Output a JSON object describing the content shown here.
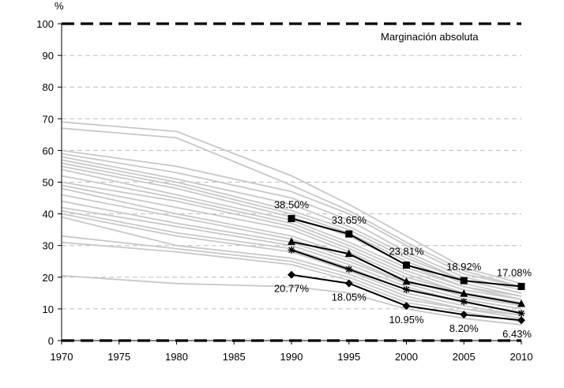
{
  "chart_data": {
    "type": "line",
    "title": "",
    "ylabel": "%",
    "xlabel": "",
    "ylim": [
      0,
      100
    ],
    "xlim": [
      1970,
      2010
    ],
    "x_ticks": [
      1970,
      1975,
      1980,
      1985,
      1990,
      1995,
      2000,
      2005,
      2010
    ],
    "y_ticks": [
      0,
      10,
      20,
      30,
      40,
      50,
      60,
      70,
      80,
      90,
      100
    ],
    "grid": "horizontal dashed",
    "annotation": "Marginación absoluta",
    "reference_lines": [
      0,
      100
    ],
    "background_series": [
      {
        "x": [
          1970,
          1980,
          1990,
          1995,
          2000,
          2005,
          2010
        ],
        "values": [
          69,
          66,
          52,
          43,
          33,
          23,
          18
        ]
      },
      {
        "x": [
          1970,
          1980,
          1990,
          1995,
          2000,
          2005,
          2010
        ],
        "values": [
          67,
          64,
          49,
          41,
          31,
          22,
          17
        ]
      },
      {
        "x": [
          1970,
          1980,
          1990,
          1995,
          2000,
          2005,
          2010
        ],
        "values": [
          60,
          55,
          47,
          40,
          30,
          21,
          17
        ]
      },
      {
        "x": [
          1970,
          1980,
          1990,
          1995,
          2000,
          2005,
          2010
        ],
        "values": [
          59,
          53,
          45,
          38,
          28,
          20,
          16
        ]
      },
      {
        "x": [
          1970,
          1980,
          1990,
          1995,
          2000,
          2005,
          2010
        ],
        "values": [
          58,
          51,
          43,
          36,
          27,
          19,
          15
        ]
      },
      {
        "x": [
          1970,
          1980,
          1990,
          1995,
          2000,
          2005,
          2010
        ],
        "values": [
          57,
          50,
          41,
          35,
          26,
          19,
          15
        ]
      },
      {
        "x": [
          1970,
          1980,
          1990,
          1995,
          2000,
          2005,
          2010
        ],
        "values": [
          56,
          49,
          40,
          34,
          25,
          18,
          14
        ]
      },
      {
        "x": [
          1970,
          1980,
          1990,
          1995,
          2000,
          2005,
          2010
        ],
        "values": [
          55,
          48,
          39,
          33,
          24,
          17,
          14
        ]
      },
      {
        "x": [
          1970,
          1980,
          1990,
          1995,
          2000,
          2005,
          2010
        ],
        "values": [
          54,
          46,
          38,
          31,
          23,
          17,
          13
        ]
      },
      {
        "x": [
          1970,
          1980,
          1990,
          1995,
          2000,
          2005,
          2010
        ],
        "values": [
          52,
          45,
          37,
          30,
          22,
          16,
          13
        ]
      },
      {
        "x": [
          1970,
          1980,
          1990,
          1995,
          2000,
          2005,
          2010
        ],
        "values": [
          50,
          44,
          36,
          29,
          21,
          15,
          12
        ]
      },
      {
        "x": [
          1970,
          1980,
          1990,
          1995,
          2000,
          2005,
          2010
        ],
        "values": [
          49,
          42,
          35,
          28,
          20,
          15,
          12
        ]
      },
      {
        "x": [
          1970,
          1980,
          1990,
          1995,
          2000,
          2005,
          2010
        ],
        "values": [
          48,
          40,
          33,
          27,
          19,
          14,
          11
        ]
      },
      {
        "x": [
          1970,
          1980,
          1990,
          1995,
          2000,
          2005,
          2010
        ],
        "values": [
          46,
          39,
          32,
          26,
          18,
          13,
          10
        ]
      },
      {
        "x": [
          1970,
          1980,
          1990,
          1995,
          2000,
          2005,
          2010
        ],
        "values": [
          44,
          37,
          31,
          25,
          18,
          13,
          10
        ]
      },
      {
        "x": [
          1970,
          1980,
          1990,
          1995,
          2000,
          2005,
          2010
        ],
        "values": [
          42,
          36,
          30,
          24,
          17,
          12,
          9
        ]
      },
      {
        "x": [
          1970,
          1980,
          1990,
          1995,
          2000,
          2005,
          2010
        ],
        "values": [
          41,
          34,
          29,
          23,
          16,
          12,
          9
        ]
      },
      {
        "x": [
          1970,
          1980,
          1990,
          1995,
          2000,
          2005,
          2010
        ],
        "values": [
          40,
          33,
          28,
          22,
          15,
          11,
          8
        ]
      },
      {
        "x": [
          1970,
          1980,
          1990,
          1995,
          2000,
          2005,
          2010
        ],
        "values": [
          39,
          30,
          26,
          21,
          14,
          10,
          8
        ]
      },
      {
        "x": [
          1970,
          1980,
          1990,
          1995,
          2000,
          2005,
          2010
        ],
        "values": [
          33,
          29,
          25,
          20,
          13,
          10,
          7
        ]
      },
      {
        "x": [
          1970,
          1980,
          1990,
          1995,
          2000,
          2005,
          2010
        ],
        "values": [
          31,
          28,
          24,
          19,
          12,
          9,
          6
        ]
      },
      {
        "x": [
          1970,
          1980,
          1990,
          1995,
          2000,
          2005,
          2010
        ],
        "values": [
          20.5,
          18,
          17,
          15,
          10,
          7,
          5
        ]
      }
    ],
    "series": [
      {
        "name": "squares",
        "marker": "square",
        "x": [
          1990,
          1995,
          2000,
          2005,
          2010
        ],
        "values": [
          38.5,
          33.65,
          23.81,
          18.92,
          17.08
        ],
        "labels": [
          "38.50%",
          "33.65%",
          "23.81%",
          "18.92%",
          "17.08%"
        ]
      },
      {
        "name": "triangles",
        "marker": "triangle",
        "x": [
          1990,
          1995,
          2000,
          2005,
          2010
        ],
        "values": [
          31.2,
          27.4,
          18.6,
          14.8,
          11.6
        ],
        "labels": []
      },
      {
        "name": "asterisks",
        "marker": "star",
        "x": [
          1990,
          1995,
          2000,
          2005,
          2010
        ],
        "values": [
          28.6,
          22.5,
          16.1,
          12.3,
          8.6
        ],
        "labels": []
      },
      {
        "name": "diamonds",
        "marker": "diamond",
        "x": [
          1990,
          1995,
          2000,
          2005,
          2010
        ],
        "values": [
          20.77,
          18.05,
          10.95,
          8.2,
          6.43
        ],
        "labels": [
          "20.77%",
          "18.05%",
          "10.95%",
          "8.20%",
          "6.43%"
        ]
      }
    ]
  }
}
